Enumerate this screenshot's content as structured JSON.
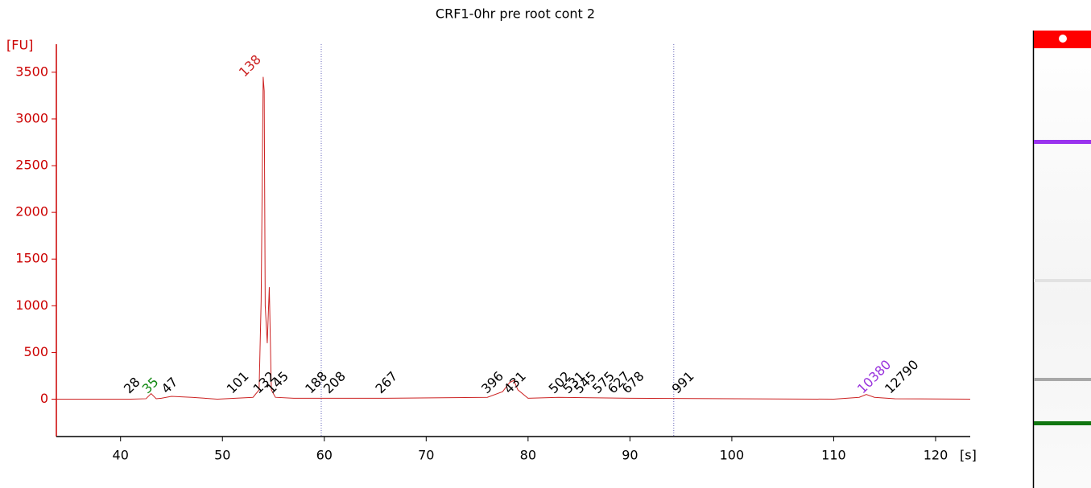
{
  "chart_data": {
    "type": "line",
    "title": "CRF1-0hr pre root cont 2",
    "x_label": "[s]",
    "y_label": "[FU]",
    "xlim": [
      33.7,
      123.4
    ],
    "ylim": [
      -400,
      3800
    ],
    "xticks": [
      40,
      50,
      60,
      70,
      80,
      90,
      100,
      110,
      120
    ],
    "yticks": [
      0,
      500,
      1000,
      1500,
      2000,
      2500,
      3000,
      3500
    ],
    "axis_color": "#cc0000",
    "series": [
      {
        "name": "CRF1-0hr pre root cont 2",
        "color": "#cc2222",
        "x": [
          33.7,
          41,
          42.5,
          43,
          43.5,
          44,
          45,
          47,
          49.5,
          53,
          53.6,
          53.8,
          54.0,
          54.1,
          54.2,
          54.4,
          54.6,
          54.8,
          55.2,
          57,
          62,
          66,
          76,
          77.5,
          78.2,
          78.6,
          79,
          80,
          83,
          90,
          110,
          112.5,
          113.2,
          114,
          116,
          123.4
        ],
        "values": [
          0,
          0,
          5,
          60,
          5,
          10,
          30,
          20,
          0,
          20,
          100,
          1050,
          3450,
          3300,
          1000,
          600,
          1200,
          100,
          20,
          10,
          10,
          10,
          20,
          80,
          180,
          200,
          100,
          10,
          20,
          10,
          0,
          20,
          50,
          20,
          5,
          0
        ]
      }
    ],
    "vlines": [
      59.7,
      94.3
    ],
    "vline_color": "#6666bb",
    "annotations": [
      {
        "text": "28",
        "x": 40.6,
        "y": 80,
        "color": "#000000"
      },
      {
        "text": "35",
        "x": 42.4,
        "y": 80,
        "color": "#118811"
      },
      {
        "text": "47",
        "x": 44.3,
        "y": 80,
        "color": "#000000"
      },
      {
        "text": "101",
        "x": 50.7,
        "y": 80,
        "color": "#000000"
      },
      {
        "text": "132",
        "x": 53.3,
        "y": 80,
        "color": "#000000"
      },
      {
        "text": "138",
        "x": 51.9,
        "y": 3470,
        "color": "#cc2222"
      },
      {
        "text": "145",
        "x": 54.6,
        "y": 80,
        "color": "#000000"
      },
      {
        "text": "188",
        "x": 58.4,
        "y": 80,
        "color": "#000000"
      },
      {
        "text": "208",
        "x": 60.2,
        "y": 80,
        "color": "#000000"
      },
      {
        "text": "267",
        "x": 65.3,
        "y": 80,
        "color": "#000000"
      },
      {
        "text": "396",
        "x": 75.7,
        "y": 80,
        "color": "#000000"
      },
      {
        "text": "431",
        "x": 77.9,
        "y": 80,
        "color": "#000000"
      },
      {
        "text": "502",
        "x": 82.3,
        "y": 80,
        "color": "#000000"
      },
      {
        "text": "531",
        "x": 83.7,
        "y": 80,
        "color": "#000000"
      },
      {
        "text": "545",
        "x": 84.8,
        "y": 80,
        "color": "#000000"
      },
      {
        "text": "575",
        "x": 86.6,
        "y": 80,
        "color": "#000000"
      },
      {
        "text": "627",
        "x": 88.1,
        "y": 80,
        "color": "#000000"
      },
      {
        "text": "678",
        "x": 89.5,
        "y": 80,
        "color": "#000000"
      },
      {
        "text": "991",
        "x": 94.4,
        "y": 80,
        "color": "#000000"
      },
      {
        "text": "10380",
        "x": 112.6,
        "y": 80,
        "color": "#9933dd"
      },
      {
        "text": "12790",
        "x": 115.3,
        "y": 80,
        "color": "#000000"
      }
    ]
  }
}
